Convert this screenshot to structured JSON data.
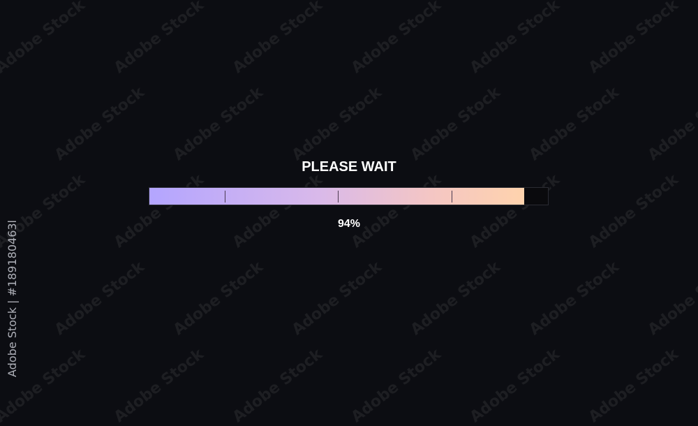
{
  "loader": {
    "title": "PLEASE WAIT",
    "progress_percent": 94,
    "progress_label": "94%",
    "gradient_colors": [
      "#b3a5ff",
      "#d9b9ea",
      "#f4c6c4",
      "#ffd3ad"
    ]
  },
  "watermark": {
    "text": "Adobe Stock",
    "side_text": "Adobe Stock | #189180463l"
  }
}
